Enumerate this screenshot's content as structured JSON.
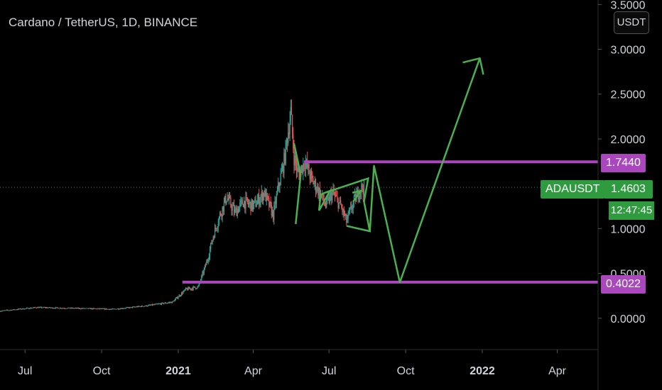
{
  "header": {
    "title": "Cardano / TetherUS, 1D, BINANCE",
    "currency_button": "USDT"
  },
  "colors": {
    "background": "#000000",
    "level_line": "#ab47bc",
    "projection": "#4caf50",
    "candle_up": "#26a69a",
    "candle_down": "#ef5350",
    "price_label": "#2e9b3e"
  },
  "price_labels": {
    "symbol": "ADAUSDT",
    "price": "1.4603",
    "countdown": "12:47:45",
    "resistance": "1.7440",
    "support": "0.4022"
  },
  "chart_data": {
    "type": "candlestick",
    "title": "Cardano / TetherUS, 1D, BINANCE",
    "x_ticks": [
      "Jul",
      "Oct",
      "2021",
      "Apr",
      "Jul",
      "Oct",
      "2022",
      "Apr"
    ],
    "y_ticks": [
      "0.0000",
      "0.5000",
      "1.0000",
      "1.5000",
      "2.0000",
      "2.5000",
      "3.0000",
      "3.5000"
    ],
    "ylim": [
      -0.35,
      3.55
    ],
    "xlim": [
      "2020-06-01",
      "2022-05-20"
    ],
    "current_price": 1.4603,
    "levels": [
      {
        "label": "1.7440",
        "value": 1.744,
        "from": "2021-06-01"
      },
      {
        "label": "0.4022",
        "value": 0.4022,
        "from": "2021-01-06"
      }
    ],
    "price_path": [
      [
        "2020-06-01",
        0.08
      ],
      [
        "2020-07-15",
        0.12
      ],
      [
        "2020-09-01",
        0.11
      ],
      [
        "2020-10-15",
        0.1
      ],
      [
        "2020-11-25",
        0.14
      ],
      [
        "2020-12-25",
        0.18
      ],
      [
        "2021-01-10",
        0.32
      ],
      [
        "2021-01-25",
        0.35
      ],
      [
        "2021-02-05",
        0.65
      ],
      [
        "2021-02-12",
        0.92
      ],
      [
        "2021-02-20",
        1.15
      ],
      [
        "2021-02-28",
        1.35
      ],
      [
        "2021-03-10",
        1.18
      ],
      [
        "2021-03-20",
        1.3
      ],
      [
        "2021-04-01",
        1.25
      ],
      [
        "2021-04-14",
        1.4
      ],
      [
        "2021-04-25",
        1.15
      ],
      [
        "2021-05-01",
        1.45
      ],
      [
        "2021-05-08",
        1.75
      ],
      [
        "2021-05-16",
        2.3
      ],
      [
        "2021-05-20",
        1.8
      ],
      [
        "2021-05-25",
        1.6
      ],
      [
        "2021-06-02",
        1.75
      ],
      [
        "2021-06-10",
        1.55
      ],
      [
        "2021-06-20",
        1.4
      ],
      [
        "2021-06-27",
        1.25
      ],
      [
        "2021-07-05",
        1.4
      ],
      [
        "2021-07-15",
        1.25
      ],
      [
        "2021-07-22",
        1.08
      ],
      [
        "2021-07-30",
        1.28
      ],
      [
        "2021-08-07",
        1.44
      ],
      [
        "2021-08-12",
        1.46
      ]
    ],
    "projection": [
      [
        "2021-08-24",
        1.7
      ],
      [
        "2021-09-24",
        0.4
      ],
      [
        "2021-12-29",
        2.9
      ]
    ]
  }
}
